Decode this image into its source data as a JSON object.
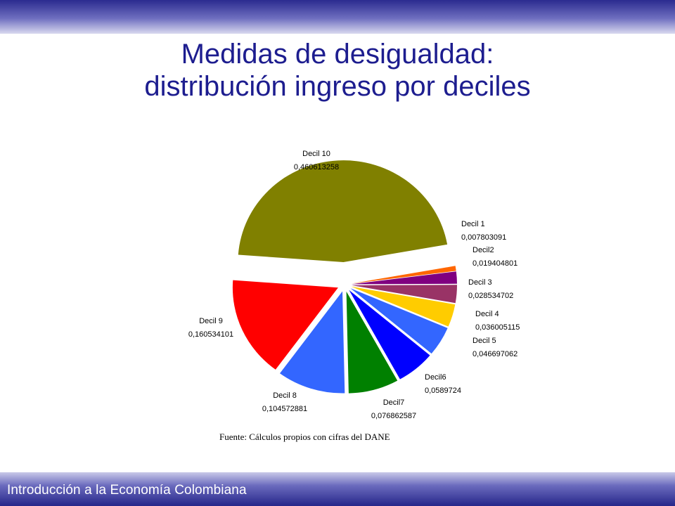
{
  "slide": {
    "title_line1": "Medidas de desigualdad:",
    "title_line2": "distribución ingreso por deciles",
    "source": "Fuente: Cálculos propios con cifras del DANE",
    "footer": "Introducción a la Economía Colombiana"
  },
  "chart_data": {
    "type": "pie",
    "exploded": true,
    "legend": "none",
    "slices": [
      {
        "name": "Decil 1",
        "value_label": "0,007803091",
        "value": 0.007803091,
        "color": "#ff6600"
      },
      {
        "name": "Decil2",
        "value_label": "0,019404801",
        "value": 0.019404801,
        "color": "#800080"
      },
      {
        "name": "Decil 3",
        "value_label": "0,028534702",
        "value": 0.028534702,
        "color": "#993366"
      },
      {
        "name": "Decil 4",
        "value_label": "0,036005115",
        "value": 0.036005115,
        "color": "#ffcc00"
      },
      {
        "name": "Decil 5",
        "value_label": "0,046697062",
        "value": 0.046697062,
        "color": "#3366ff"
      },
      {
        "name": "Decil6",
        "value_label": "0,0589724",
        "value": 0.0589724,
        "color": "#0000ff"
      },
      {
        "name": "Decil7",
        "value_label": "0,076862587",
        "value": 0.076862587,
        "color": "#008000"
      },
      {
        "name": "Decil 8",
        "value_label": "0,104572881",
        "value": 0.104572881,
        "color": "#3366ff"
      },
      {
        "name": "Decil 9",
        "value_label": "0,160534101",
        "value": 0.160534101,
        "color": "#ff0000"
      },
      {
        "name": "Decil 10",
        "value_label": "0,460613258",
        "value": 0.460613258,
        "color": "#808000"
      }
    ]
  }
}
